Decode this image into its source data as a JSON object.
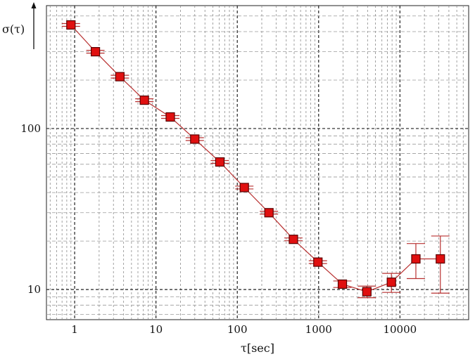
{
  "chart_data": {
    "type": "scatter",
    "xscale": "log",
    "yscale": "log",
    "xlim": [
      0.45,
      70000
    ],
    "ylim": [
      6.5,
      580
    ],
    "grid": true,
    "xlabel": "τ[sec]",
    "ylabel": "σ(τ)",
    "x_ticks": [
      {
        "value": 1,
        "label": "1"
      },
      {
        "value": 10,
        "label": "10"
      },
      {
        "value": 100,
        "label": "100"
      },
      {
        "value": 1000,
        "label": "1000"
      },
      {
        "value": 10000,
        "label": "10000"
      }
    ],
    "y_ticks": [
      {
        "value": 10,
        "label": "10"
      },
      {
        "value": 100,
        "label": "100"
      }
    ],
    "colors": {
      "marker": "#e01010",
      "line": "#b83030",
      "grid": "#333333"
    },
    "series": [
      {
        "x": [
          0.9,
          1.8,
          3.6,
          7.2,
          15,
          30,
          61,
          122,
          245,
          490,
          980,
          1960,
          3920,
          7850,
          15700,
          31400
        ],
        "y": [
          440,
          300,
          210,
          150,
          118,
          86,
          62,
          43,
          30,
          20.5,
          14.8,
          10.8,
          9.7,
          11.1,
          15.5,
          15.5
        ],
        "yerr": [
          0,
          0,
          0,
          0,
          0,
          0,
          0,
          0,
          0,
          0,
          0,
          0.5,
          0.8,
          1.5,
          3.8,
          6
        ]
      }
    ]
  }
}
